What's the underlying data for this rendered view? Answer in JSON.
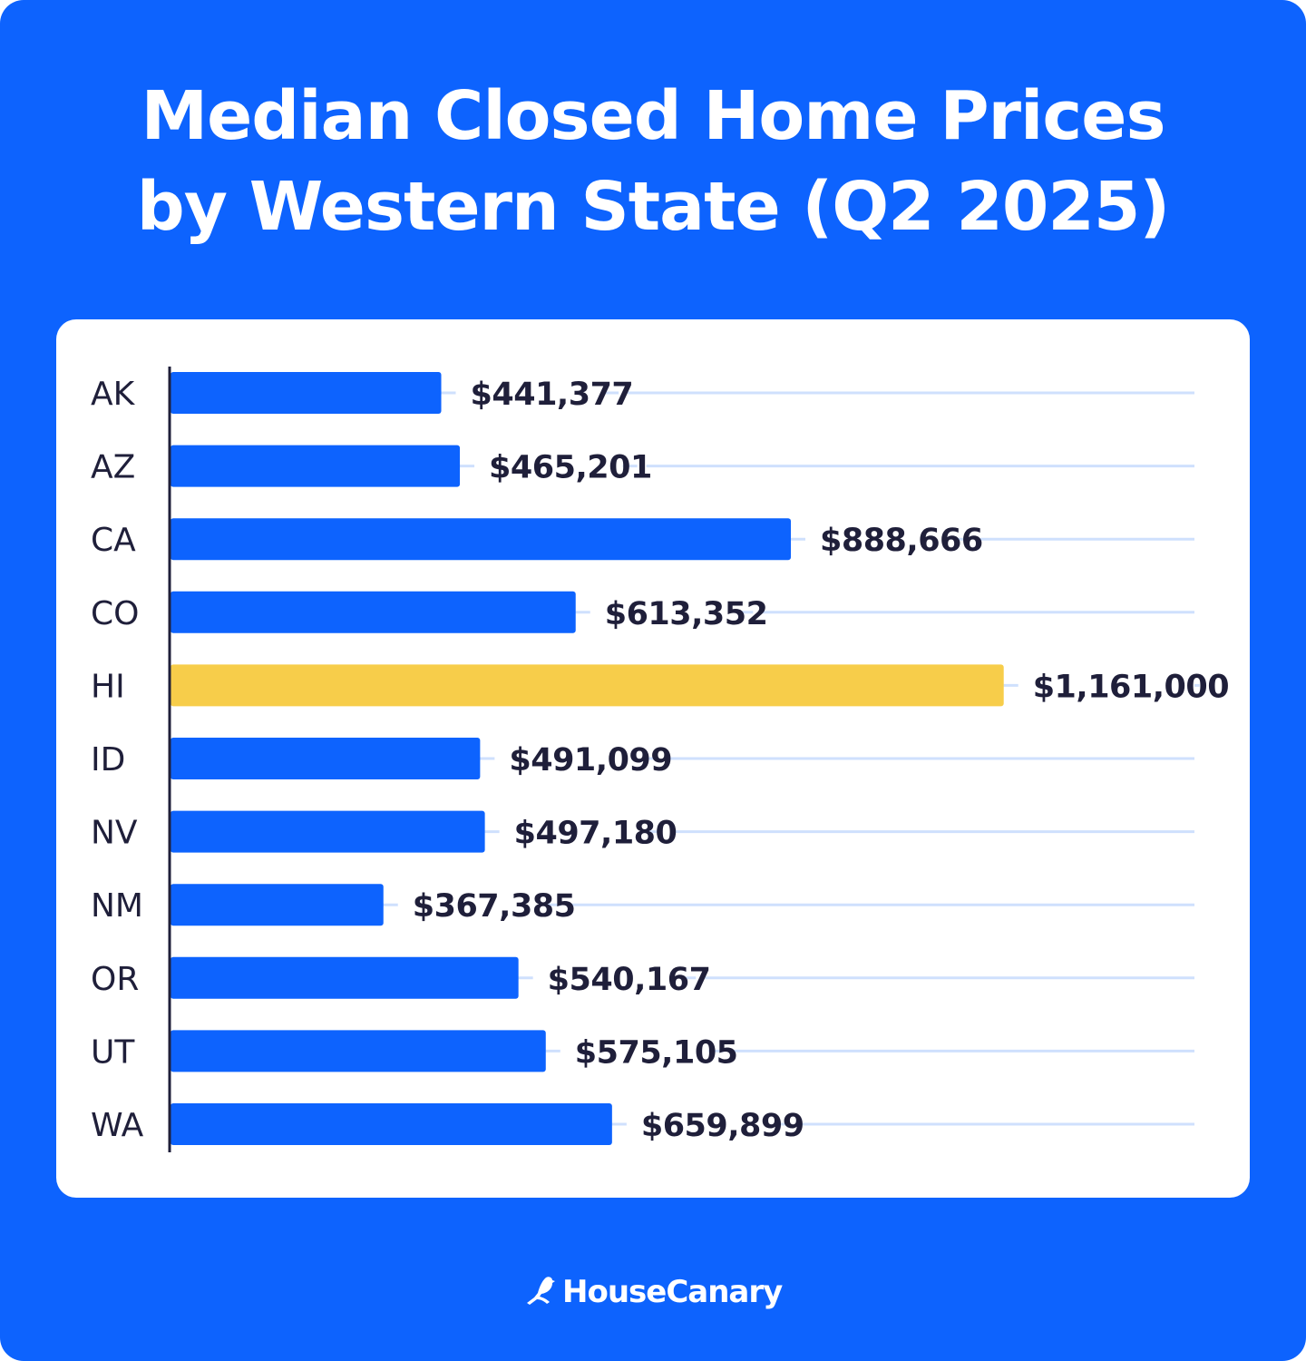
{
  "chart_data": {
    "type": "bar",
    "orientation": "horizontal",
    "title": "Median Closed Home Prices by Western State (Q2 2025)",
    "title_lines": [
      "Median Closed Home Prices",
      "by Western State (Q2 2025)"
    ],
    "categories": [
      "AK",
      "AZ",
      "CA",
      "CO",
      "HI",
      "ID",
      "NV",
      "NM",
      "OR",
      "UT",
      "WA"
    ],
    "values": [
      441377,
      465201,
      888666,
      613352,
      1161000,
      491099,
      497180,
      367385,
      540167,
      575105,
      659899
    ],
    "data_labels": [
      "$441,377",
      "$465,201",
      "$888,666",
      "$613,352",
      "$1,161,000",
      "$491,099",
      "$497,180",
      "$367,385",
      "$540,167",
      "$575,105",
      "$659,899"
    ],
    "highlight": "HI",
    "xlabel": "",
    "ylabel": "",
    "xlim": [
      95000,
      1405000
    ],
    "grid": false,
    "legend": "none",
    "colors": {
      "bar": "#0d63fe",
      "highlight": "#f7cd4a",
      "guide": "#cfe0fd",
      "text": "#1f1f3a",
      "background": "#0d63fe"
    }
  },
  "brand": {
    "name": "HouseCanary",
    "icon": "canary-bird-icon"
  }
}
